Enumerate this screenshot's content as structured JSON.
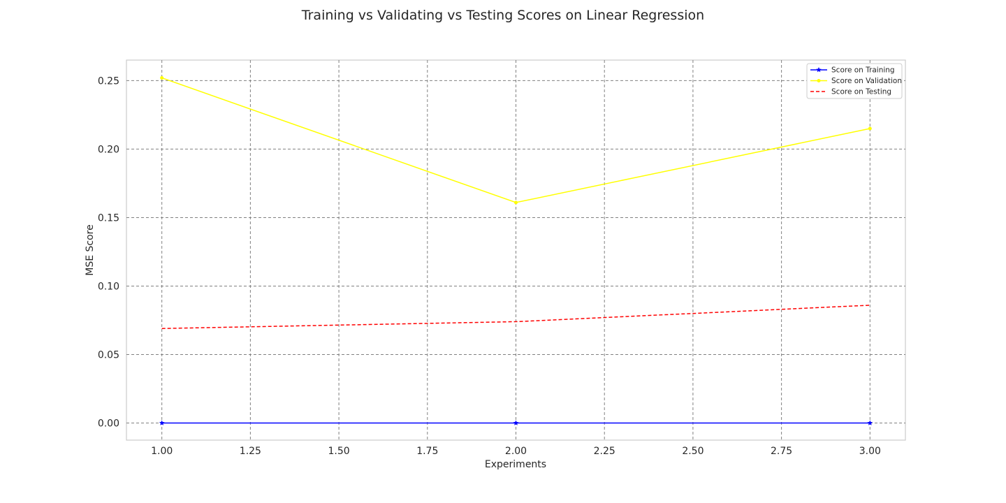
{
  "chart_data": {
    "type": "line",
    "title": "Training vs Validating vs Testing Scores on Linear Regression",
    "xlabel": "Experiments",
    "ylabel": "MSE Score",
    "x": [
      1,
      2,
      3
    ],
    "xlim": [
      0.9,
      3.1
    ],
    "ylim": [
      -0.0125,
      0.265
    ],
    "xticks": [
      "1.00",
      "1.25",
      "1.50",
      "1.75",
      "2.00",
      "2.25",
      "2.50",
      "2.75",
      "3.00"
    ],
    "yticks": [
      "0.00",
      "0.05",
      "0.10",
      "0.15",
      "0.20",
      "0.25"
    ],
    "grid": true,
    "legend_position": "top-right",
    "series": [
      {
        "name": "Score on Training",
        "values": [
          0.0,
          0.0,
          0.0
        ],
        "color": "#0000ff",
        "linestyle": "solid",
        "marker": "star"
      },
      {
        "name": "Score on Validation",
        "values": [
          0.252,
          0.161,
          0.215
        ],
        "color": "#ffff00",
        "linestyle": "solid",
        "marker": "dot"
      },
      {
        "name": "Score on Testing",
        "values": [
          0.069,
          0.074,
          0.086
        ],
        "color": "#ff0000",
        "linestyle": "dashed",
        "marker": "none"
      }
    ]
  }
}
